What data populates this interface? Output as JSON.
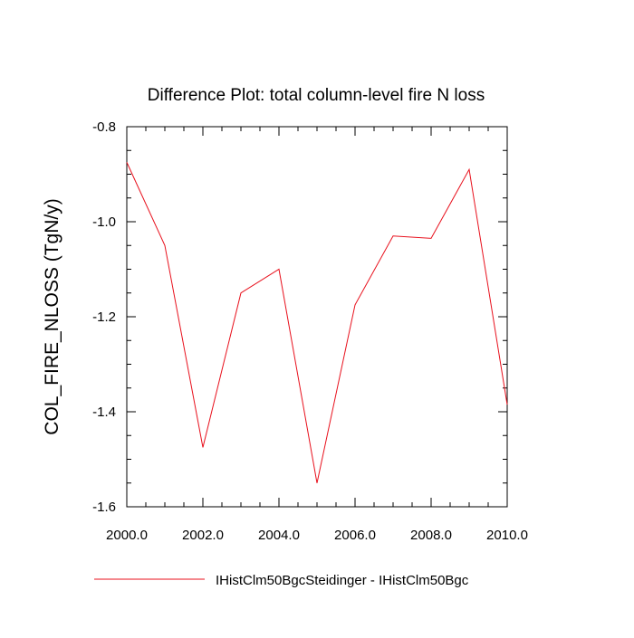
{
  "chart_data": {
    "type": "line",
    "title": "Difference Plot: total column-level fire N loss",
    "xlabel": "",
    "ylabel": "COL_FIRE_NLOSS  (TgN/y)",
    "xlim": [
      2000,
      2010
    ],
    "ylim": [
      -1.6,
      -0.8
    ],
    "x_ticks": [
      2000,
      2002,
      2004,
      2006,
      2008,
      2010
    ],
    "x_tick_labels": [
      "2000.0",
      "2002.0",
      "2004.0",
      "2006.0",
      "2008.0",
      "2010.0"
    ],
    "y_ticks": [
      -0.8,
      -1.0,
      -1.2,
      -1.4,
      -1.6
    ],
    "y_tick_labels": [
      "-0.8",
      "-1.0",
      "-1.2",
      "-1.4",
      "-1.6"
    ],
    "x_minor_step": 0.5,
    "y_minor_step": 0.05,
    "grid": false,
    "legend_position": "bottom-left",
    "series": [
      {
        "name": "IHistClm50BgcSteidinger - IHistClm50Bgc",
        "color": "#e8101c",
        "x": [
          2000,
          2001,
          2002,
          2003,
          2004,
          2005,
          2006,
          2007,
          2008,
          2009,
          2010
        ],
        "y": [
          -0.875,
          -1.05,
          -1.475,
          -1.15,
          -1.1,
          -1.55,
          -1.175,
          -1.03,
          -1.035,
          -0.89,
          -1.385
        ]
      }
    ]
  }
}
